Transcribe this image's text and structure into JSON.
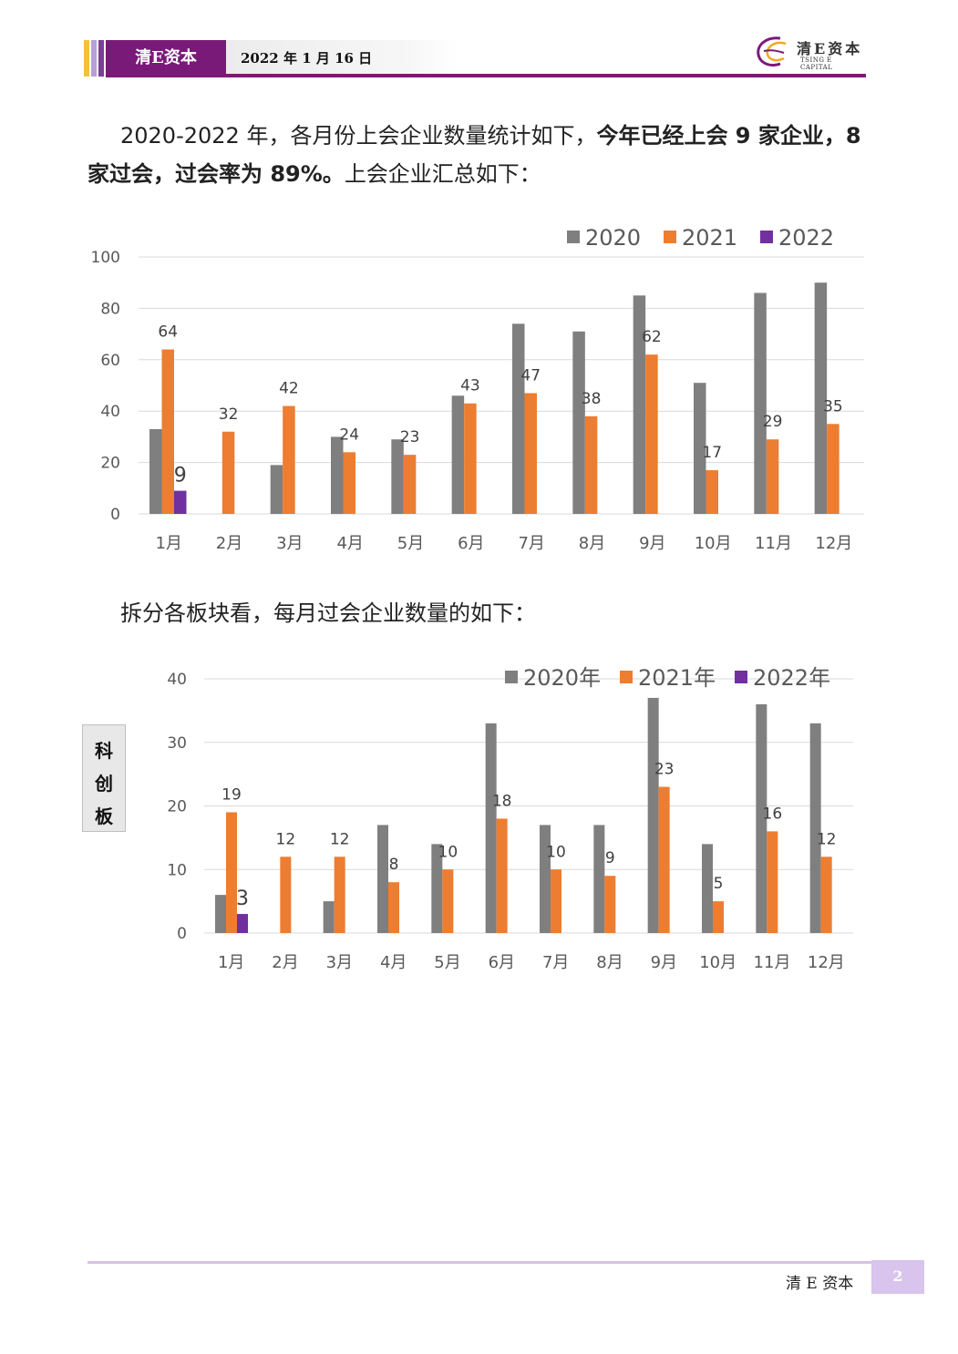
{
  "header": {
    "brand": "清E资本",
    "date": "2022 年 1 月 16 日",
    "logo_cn": "清E资本",
    "logo_en": "TSING E CAPITAL"
  },
  "intro": {
    "normal_1": "2020-2022 年，各月份上会企业数量统计如下，",
    "bold": "今年已经上会 9 家企业，8 家过会，过会率为 89%。",
    "normal_2": "上会企业汇总如下："
  },
  "para2": "拆分各板块看，每月过会企业数量的如下：",
  "side_label": [
    "科",
    "创",
    "板"
  ],
  "footer": {
    "brand": "清 E 资本",
    "page": "2"
  },
  "colors": {
    "2020": "#7f7f7f",
    "2021": "#ed7d31",
    "2022": "#7030a0"
  },
  "chart_data": [
    {
      "type": "bar",
      "categories": [
        "1月",
        "2月",
        "3月",
        "4月",
        "5月",
        "6月",
        "7月",
        "8月",
        "9月",
        "10月",
        "11月",
        "12月"
      ],
      "series": [
        {
          "name": "2020",
          "values": [
            33,
            0,
            19,
            30,
            29,
            46,
            74,
            71,
            85,
            51,
            86,
            90
          ],
          "labeled": false
        },
        {
          "name": "2021",
          "values": [
            64,
            32,
            42,
            24,
            23,
            43,
            47,
            38,
            62,
            17,
            29,
            35
          ],
          "labeled": true
        },
        {
          "name": "2022",
          "values": [
            9,
            null,
            null,
            null,
            null,
            null,
            null,
            null,
            null,
            null,
            null,
            null
          ],
          "labeled": true
        }
      ],
      "ylim": [
        0,
        100
      ],
      "yticks": [
        0,
        20,
        40,
        60,
        80,
        100
      ],
      "legend": "top-right",
      "grid": true
    },
    {
      "type": "bar",
      "categories": [
        "1月",
        "2月",
        "3月",
        "4月",
        "5月",
        "6月",
        "7月",
        "8月",
        "9月",
        "10月",
        "11月",
        "12月"
      ],
      "series": [
        {
          "name": "2020年",
          "values": [
            6,
            0,
            5,
            17,
            14,
            33,
            17,
            17,
            37,
            14,
            36,
            33
          ],
          "labeled": false
        },
        {
          "name": "2021年",
          "values": [
            19,
            12,
            12,
            8,
            10,
            18,
            10,
            9,
            23,
            5,
            16,
            12
          ],
          "labeled": true
        },
        {
          "name": "2022年",
          "values": [
            3,
            null,
            null,
            null,
            null,
            null,
            null,
            null,
            null,
            null,
            null,
            null
          ],
          "labeled": true
        }
      ],
      "ylim": [
        0,
        40
      ],
      "yticks": [
        0,
        10,
        20,
        30,
        40
      ],
      "legend": "top-right",
      "grid": true
    }
  ]
}
